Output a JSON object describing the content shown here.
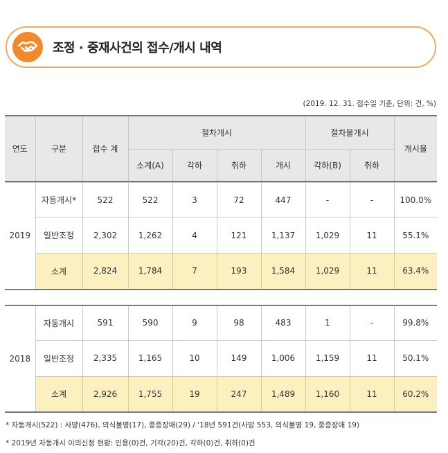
{
  "title": "조정 · 중재사건의 접수/개시 내역",
  "meta": "(2019. 12. 31. 접수일 기준, 단위: 건, %)",
  "headers": {
    "year": "연도",
    "category": "구분",
    "received": "접수 계",
    "start_group": "절차개시",
    "nonstart_group": "절차불개시",
    "rate": "개시율",
    "subtotal_a": "소계(A)",
    "dismissed": "각하",
    "withdrawn": "취하",
    "started": "개시",
    "dismissed_b": "각하(B)",
    "withdrawn2": "취하"
  },
  "groups": [
    {
      "year": "2019",
      "rows": [
        [
          "자동개시*",
          "522",
          "522",
          "3",
          "72",
          "447",
          "-",
          "-",
          "100.0%"
        ],
        [
          "일반조정",
          "2,302",
          "1,262",
          "4",
          "121",
          "1,137",
          "1,029",
          "11",
          "55.1%"
        ],
        [
          "소계",
          "2,824",
          "1,784",
          "7",
          "193",
          "1,584",
          "1,029",
          "11",
          "63.4%"
        ]
      ]
    },
    {
      "year": "2018",
      "rows": [
        [
          "자동개시",
          "591",
          "590",
          "9",
          "98",
          "483",
          "1",
          "-",
          "99.8%"
        ],
        [
          "일반조정",
          "2,335",
          "1,165",
          "10",
          "149",
          "1,006",
          "1,159",
          "11",
          "50.1%"
        ],
        [
          "소계",
          "2,926",
          "1,755",
          "19",
          "247",
          "1,489",
          "1,160",
          "11",
          "60.2%"
        ]
      ]
    }
  ],
  "footnotes": [
    "* 자동개시(522) : 사망(476), 의식불명(17), 중증장애(29) / '18년 591건(사망 553, 의식불명 19, 중증장애 19)",
    "* 2019년 자동개시 이의신청 현황: 인용(0)건, 기각(20)건, 각하(0)건, 취하(0)건"
  ],
  "colors": {
    "accent": "#ef8a2e",
    "subtotal_bg": "#fdf0c0",
    "header_bg": "#e8e8e8"
  },
  "icon": "handshake-icon"
}
